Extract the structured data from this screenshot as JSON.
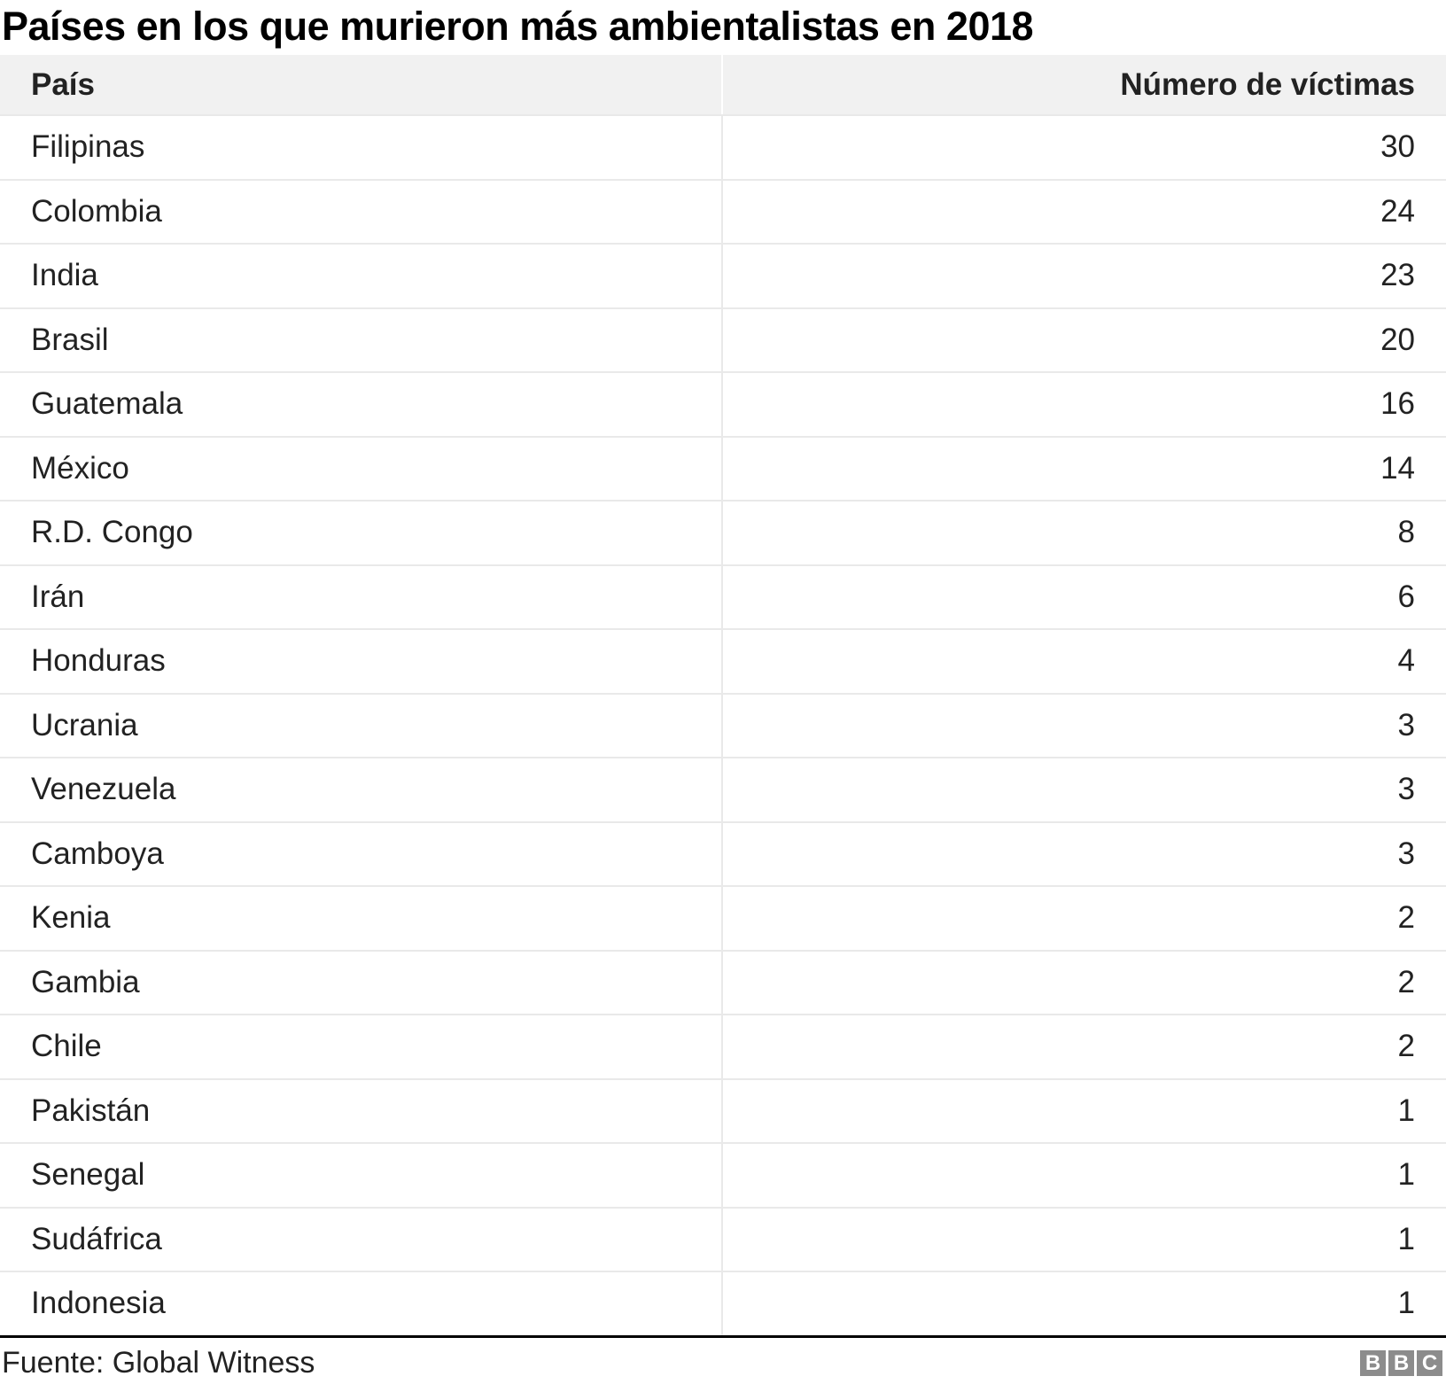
{
  "title": "Países en los que murieron más ambientalistas en 2018",
  "table": {
    "columns": [
      "País",
      "Número de víctimas"
    ]
  },
  "footer": {
    "source": "Fuente: Global Witness",
    "logo_letters": {
      "b1": "B",
      "b2": "B",
      "c": "C"
    }
  },
  "colors": {
    "header_bg": "#f1f1f1",
    "row_divider": "#e9e9e9",
    "bottom_rule": "#000000",
    "logo_bg": "#8c8c8c",
    "title_text": "#000000",
    "body_text": "#222222"
  },
  "chart_data": {
    "type": "table",
    "title": "Países en los que murieron más ambientalistas en 2018",
    "columns": [
      "País",
      "Número de víctimas"
    ],
    "rows": [
      [
        "Filipinas",
        30
      ],
      [
        "Colombia",
        24
      ],
      [
        "India",
        23
      ],
      [
        "Brasil",
        20
      ],
      [
        "Guatemala",
        16
      ],
      [
        "México",
        14
      ],
      [
        "R.D. Congo",
        8
      ],
      [
        "Irán",
        6
      ],
      [
        "Honduras",
        4
      ],
      [
        "Ucrania",
        3
      ],
      [
        "Venezuela",
        3
      ],
      [
        "Camboya",
        3
      ],
      [
        "Kenia",
        2
      ],
      [
        "Gambia",
        2
      ],
      [
        "Chile",
        2
      ],
      [
        "Pakistán",
        1
      ],
      [
        "Senegal",
        1
      ],
      [
        "Sudáfrica",
        1
      ],
      [
        "Indonesia",
        1
      ]
    ],
    "source": "Fuente: Global Witness",
    "legend": false,
    "grid": "row-dividers"
  }
}
